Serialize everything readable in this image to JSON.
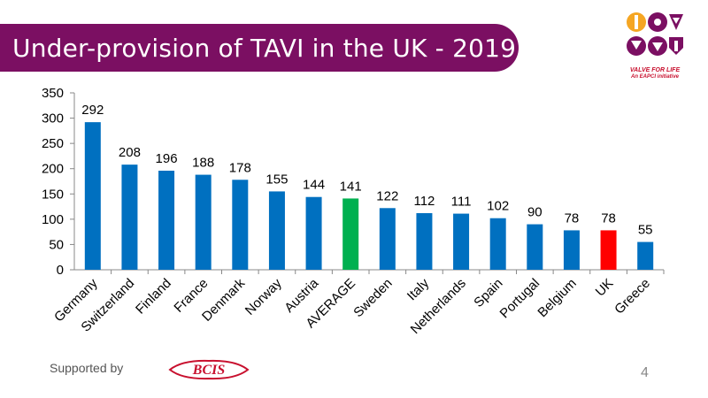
{
  "header": {
    "title": "Under-provision  of TAVI in the UK  - 2019"
  },
  "logo": {
    "line1": "VALVE FOR LIFE",
    "line2": "An EAPCI initiative"
  },
  "footer": {
    "supported_label": "Supported by",
    "sponsor_name": "BCIS",
    "page_number": "4"
  },
  "colors": {
    "default_bar": "#0070c0",
    "average_bar": "#00b050",
    "uk_bar": "#ff0000",
    "banner": "#7b0f62"
  },
  "chart_data": {
    "type": "bar",
    "title": "",
    "xlabel": "",
    "ylabel": "",
    "ylim": [
      0,
      350
    ],
    "yticks": [
      0,
      50,
      100,
      150,
      200,
      250,
      300,
      350
    ],
    "grid": false,
    "categories": [
      "Germany",
      "Switzerland",
      "Finland",
      "France",
      "Denmark",
      "Norway",
      "Austria",
      "AVERAGE",
      "Sweden",
      "Italy",
      "Netherlands",
      "Spain",
      "Portugal",
      "Belgium",
      "UK",
      "Greece"
    ],
    "values": [
      292,
      208,
      196,
      188,
      178,
      155,
      144,
      141,
      122,
      112,
      111,
      102,
      90,
      78,
      78,
      55
    ],
    "highlight": {
      "AVERAGE": "#00b050",
      "UK": "#ff0000"
    }
  }
}
